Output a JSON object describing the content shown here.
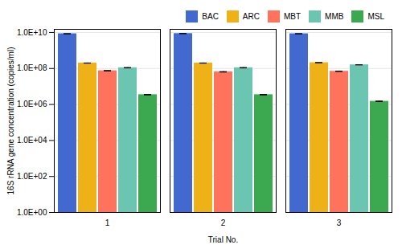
{
  "chart_data": {
    "type": "bar",
    "categories": [
      "1",
      "2",
      "3"
    ],
    "series": [
      {
        "name": "BAC",
        "values": [
          8500000000.0,
          8700000000.0,
          8500000000.0
        ],
        "errors": [
          50000000.0,
          50000000.0,
          50000000.0
        ]
      },
      {
        "name": "ARC",
        "values": [
          200000000.0,
          200000000.0,
          210000000.0
        ],
        "errors": [
          3000000.0,
          3000000.0,
          3000000.0
        ]
      },
      {
        "name": "MBT",
        "values": [
          75000000.0,
          65000000.0,
          70000000.0
        ],
        "errors": [
          2000000.0,
          2000000.0,
          2000000.0
        ]
      },
      {
        "name": "MMB",
        "values": [
          110000000.0,
          110000000.0,
          160000000.0
        ],
        "errors": [
          3000000.0,
          3000000.0,
          3000000.0
        ]
      },
      {
        "name": "MSL",
        "values": [
          3500000.0,
          3500000.0,
          1500000.0
        ],
        "errors": [
          100000.0,
          100000.0,
          50000.0
        ]
      }
    ],
    "xlabel": "Trial No.",
    "ylabel": "16S rRNA gene concentration (copies/ml)",
    "log": "y",
    "ylim": [
      1,
      15000000000
    ],
    "yticks": [
      {
        "value": 1,
        "label": "1.0E+00"
      },
      {
        "value": 100,
        "label": "1.0E+02"
      },
      {
        "value": 10000,
        "label": "1.0E+04"
      },
      {
        "value": 1000000,
        "label": "1.0E+06"
      },
      {
        "value": 100000000,
        "label": "1.0E+08"
      },
      {
        "value": 10000000000,
        "label": "1.0E+10"
      }
    ],
    "grid": true,
    "legend": "upper right"
  }
}
